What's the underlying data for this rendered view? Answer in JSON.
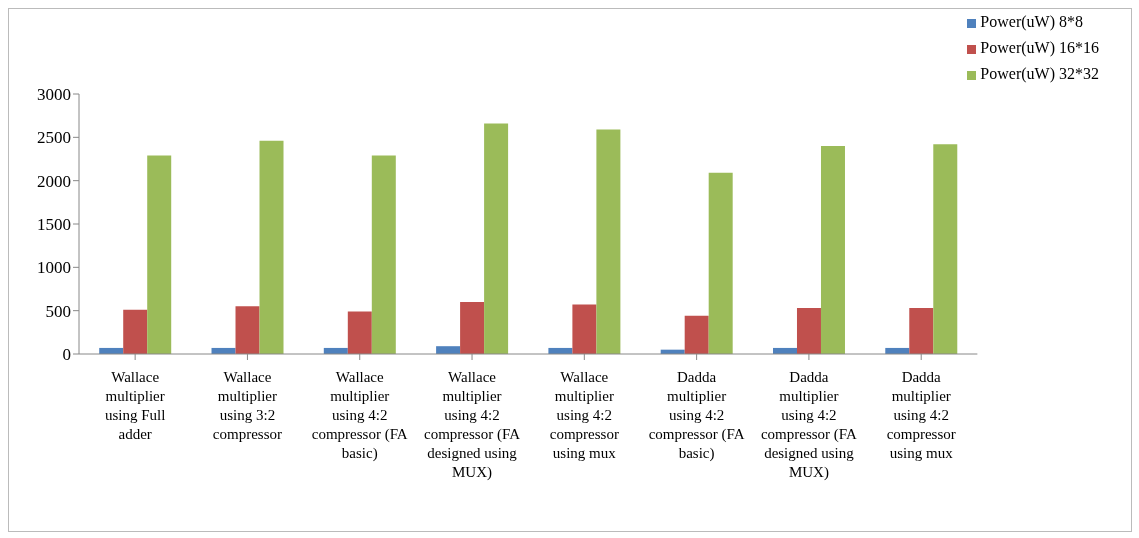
{
  "chart_data": {
    "type": "bar",
    "categories": [
      "Wallace multiplier using Full adder",
      "Wallace multiplier using 3:2 compressor",
      "Wallace multiplier using 4:2 compressor (FA basic)",
      "Wallace multiplier using 4:2 compressor (FA designed using MUX)",
      "Wallace multiplier using 4:2 compressor using mux",
      "Dadda multiplier using 4:2 compressor (FA basic)",
      "Dadda multiplier using 4:2 compressor (FA designed using MUX)",
      "Dadda multiplier using 4:2 compressor using mux"
    ],
    "series": [
      {
        "name": "Power(uW) 8*8",
        "color": "#4f81bd",
        "values": [
          70,
          70,
          70,
          90,
          70,
          50,
          70,
          70
        ]
      },
      {
        "name": "Power(uW) 16*16",
        "color": "#c0504d",
        "values": [
          510,
          550,
          490,
          600,
          570,
          440,
          530,
          530
        ]
      },
      {
        "name": "Power(uW) 32*32",
        "color": "#9bbb59",
        "values": [
          2290,
          2460,
          2290,
          2660,
          2590,
          2090,
          2400,
          2420
        ]
      }
    ],
    "ylim": [
      0,
      3000
    ],
    "yticks": [
      0,
      500,
      1000,
      1500,
      2000,
      2500,
      3000
    ],
    "grid": false,
    "legend": "top right"
  }
}
